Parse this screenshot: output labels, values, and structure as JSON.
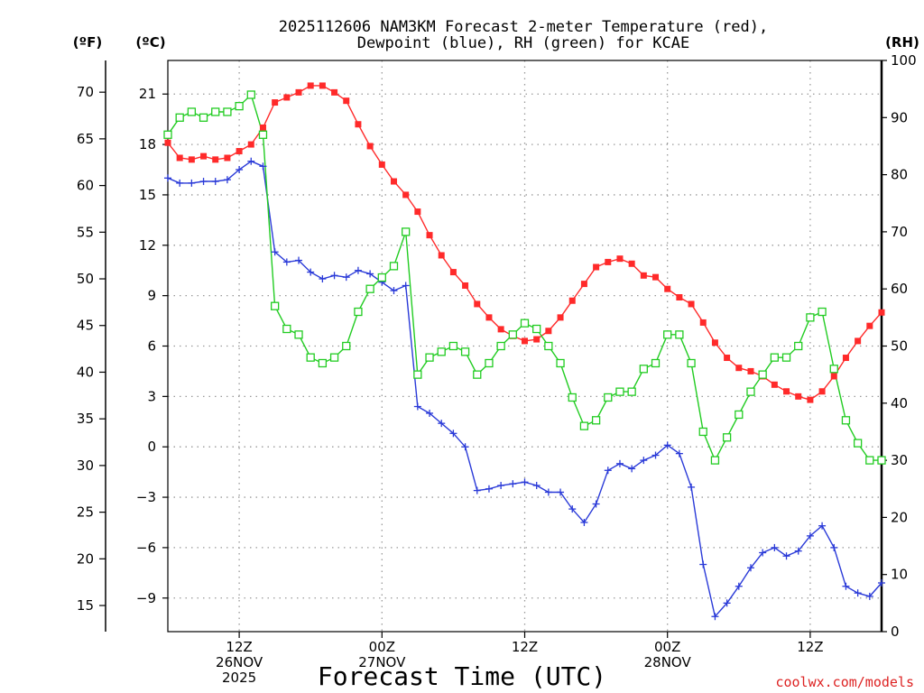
{
  "chart_data": {
    "type": "line",
    "title_lines": [
      "2025112606 NAM3KM Forecast 2-meter Temperature (red),",
      "Dewpoint (blue), RH (green) for KCAE"
    ],
    "xlabel": "Forecast Time (UTC)",
    "credit": "coolwx.com/models",
    "x_range_hours": [
      6,
      66
    ],
    "x_ticks": [
      {
        "hour": 12,
        "lines": [
          "12Z",
          "26NOV",
          "2025"
        ]
      },
      {
        "hour": 24,
        "lines": [
          "00Z",
          "27NOV"
        ]
      },
      {
        "hour": 36,
        "lines": [
          "12Z"
        ]
      },
      {
        "hour": 48,
        "lines": [
          "00Z",
          "28NOV"
        ]
      },
      {
        "hour": 60,
        "lines": [
          "12Z"
        ]
      }
    ],
    "axes": {
      "fahrenheit": {
        "label": "(ºF)",
        "ticks": [
          70,
          65,
          60,
          55,
          50,
          45,
          40,
          35,
          30,
          25,
          20,
          15
        ]
      },
      "celsius": {
        "label": "(ºC)",
        "range": [
          -11,
          23
        ],
        "ticks": [
          21,
          18,
          15,
          12,
          9,
          6,
          3,
          0,
          -3,
          -6,
          -9
        ]
      },
      "rh": {
        "label": "(RH)",
        "range": [
          0,
          100
        ],
        "ticks": [
          100,
          90,
          80,
          70,
          60,
          50,
          40,
          30,
          20,
          10,
          0
        ]
      }
    },
    "series": [
      {
        "name": "Temperature (°C)",
        "color": "#ff2a2a",
        "marker": "filled-square",
        "x": [
          6,
          7,
          8,
          9,
          10,
          11,
          12,
          13,
          14,
          15,
          16,
          17,
          18,
          19,
          20,
          21,
          22,
          23,
          24,
          25,
          26,
          27,
          28,
          29,
          30,
          31,
          32,
          33,
          34,
          35,
          36,
          37,
          38,
          39,
          40,
          41,
          42,
          43,
          44,
          45,
          46,
          47,
          48,
          49,
          50,
          51,
          52,
          53,
          54,
          55,
          56,
          57,
          58,
          59,
          60,
          61,
          62,
          63,
          64,
          65,
          66
        ],
        "values": [
          18.1,
          17.2,
          17.1,
          17.3,
          17.1,
          17.2,
          17.6,
          18.0,
          19.0,
          20.5,
          20.8,
          21.1,
          21.5,
          21.5,
          21.1,
          20.6,
          19.2,
          17.9,
          16.8,
          15.8,
          15.0,
          14.0,
          12.6,
          11.4,
          10.4,
          9.6,
          8.5,
          7.7,
          7.0,
          6.6,
          6.3,
          6.4,
          6.9,
          7.7,
          8.7,
          9.7,
          10.7,
          11.0,
          11.2,
          10.9,
          10.2,
          10.1,
          9.4,
          8.9,
          8.5,
          7.4,
          6.2,
          5.3,
          4.7,
          4.5,
          4.2,
          3.7,
          3.3,
          3.0,
          2.8,
          3.3,
          4.2,
          5.3,
          6.3,
          7.2,
          8.0
        ]
      },
      {
        "name": "Dewpoint (°C)",
        "color": "#2a3ad8",
        "marker": "plus",
        "x": [
          6,
          7,
          8,
          9,
          10,
          11,
          12,
          13,
          14,
          15,
          16,
          17,
          18,
          19,
          20,
          21,
          22,
          23,
          24,
          25,
          26,
          27,
          28,
          29,
          30,
          31,
          32,
          33,
          34,
          35,
          36,
          37,
          38,
          39,
          40,
          41,
          42,
          43,
          44,
          45,
          46,
          47,
          48,
          49,
          50,
          51,
          52,
          53,
          54,
          55,
          56,
          57,
          58,
          59,
          60,
          61,
          62,
          63,
          64,
          65,
          66
        ],
        "values": [
          16.0,
          15.7,
          15.7,
          15.8,
          15.8,
          15.9,
          16.5,
          17.0,
          16.7,
          11.6,
          11.0,
          11.1,
          10.4,
          10.0,
          10.2,
          10.1,
          10.5,
          10.3,
          9.8,
          9.3,
          9.6,
          2.4,
          2.0,
          1.4,
          0.8,
          0.0,
          -2.6,
          -2.5,
          -2.3,
          -2.2,
          -2.1,
          -2.3,
          -2.7,
          -2.7,
          -3.7,
          -4.5,
          -3.4,
          -1.4,
          -1.0,
          -1.3,
          -0.8,
          -0.5,
          0.1,
          -0.4,
          -2.4,
          -7.0,
          -10.1,
          -9.3,
          -8.3,
          -7.2,
          -6.3,
          -6.0,
          -6.5,
          -6.2,
          -5.3,
          -4.7,
          -6.0,
          -8.3,
          -8.7,
          -8.9,
          -8.1
        ]
      },
      {
        "name": "RH (%)",
        "color": "#22cc22",
        "marker": "open-square",
        "x": [
          6,
          7,
          8,
          9,
          10,
          11,
          12,
          13,
          14,
          15,
          16,
          17,
          18,
          19,
          20,
          21,
          22,
          23,
          24,
          25,
          26,
          27,
          28,
          29,
          30,
          31,
          32,
          33,
          34,
          35,
          36,
          37,
          38,
          39,
          40,
          41,
          42,
          43,
          44,
          45,
          46,
          47,
          48,
          49,
          50,
          51,
          52,
          53,
          54,
          55,
          56,
          57,
          58,
          59,
          60,
          61,
          62,
          63,
          64,
          65,
          66
        ],
        "values": [
          87,
          90,
          91,
          90,
          91,
          91,
          92,
          94,
          87,
          57,
          53,
          52,
          48,
          47,
          48,
          50,
          56,
          60,
          62,
          64,
          70,
          45,
          48,
          49,
          50,
          49,
          45,
          47,
          50,
          52,
          54,
          53,
          50,
          47,
          41,
          36,
          37,
          41,
          42,
          42,
          46,
          47,
          52,
          52,
          47,
          35,
          30,
          34,
          38,
          42,
          45,
          48,
          48,
          50,
          55,
          56,
          46,
          37,
          33,
          30,
          30
        ]
      }
    ]
  }
}
